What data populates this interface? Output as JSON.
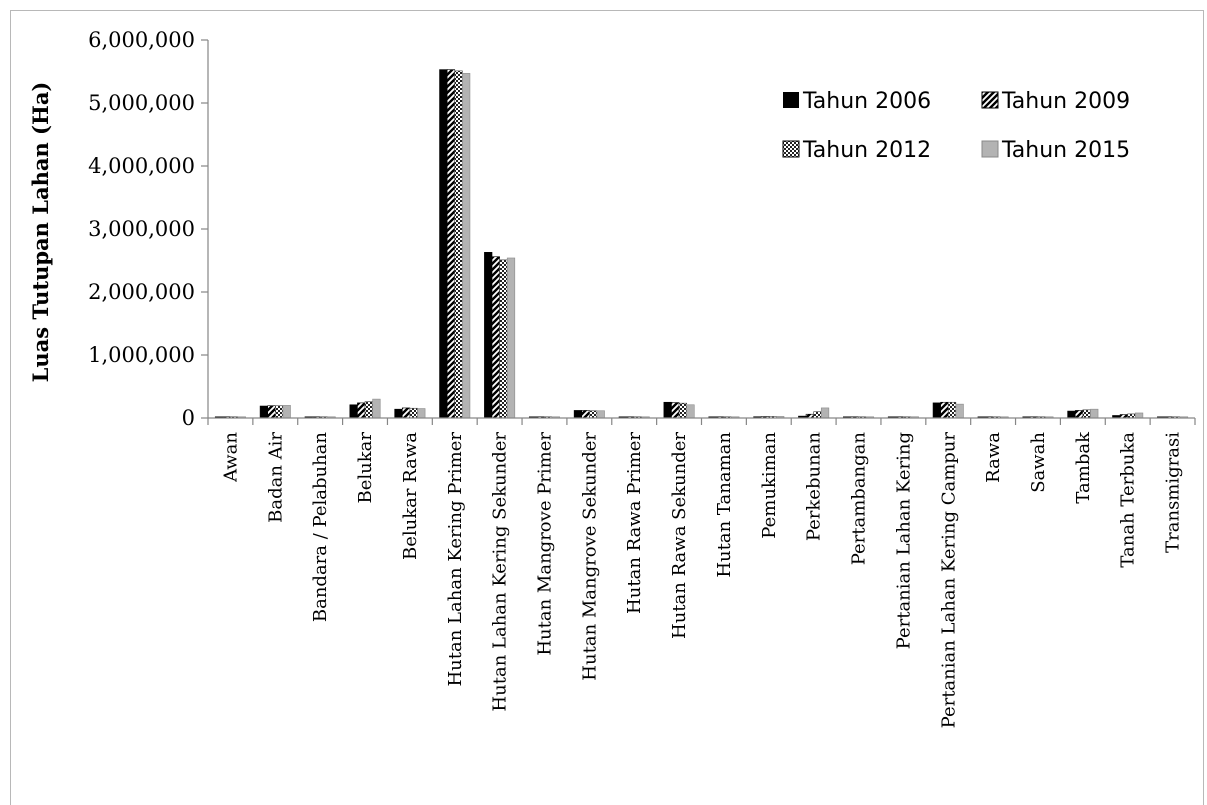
{
  "chart_data": {
    "type": "bar",
    "title": "",
    "xlabel": "",
    "ylabel": "Luas Tutupan Lahan (Ha)",
    "ylim": [
      0,
      6000000
    ],
    "yticks": [
      "0",
      "1,000,000",
      "2,000,000",
      "3,000,000",
      "4,000,000",
      "5,000,000",
      "6,000,000"
    ],
    "grid": false,
    "legend_position": "top-right",
    "categories": [
      "Awan",
      "Badan Air",
      "Bandara / Pelabuhan",
      "Belukar",
      "Belukar Rawa",
      "Hutan Lahan Kering Primer",
      "Hutan Lahan Kering Sekunder",
      "Hutan Mangrove Primer",
      "Hutan Mangrove Sekunder",
      "Hutan Rawa Primer",
      "Hutan Rawa Sekunder",
      "Hutan Tanaman",
      "Pemukiman",
      "Perkebunan",
      "Pertambangan",
      "Pertanian Lahan Kering",
      "Pertanian Lahan Kering Campur",
      "Rawa",
      "Sawah",
      "Tambak",
      "Tanah Terbuka",
      "Transmigrasi"
    ],
    "series": [
      {
        "name": "Tahun 2006",
        "values": [
          2000,
          190000,
          5000,
          210000,
          140000,
          5530000,
          2630000,
          5000,
          120000,
          15000,
          250000,
          10000,
          20000,
          30000,
          5000,
          15000,
          240000,
          5000,
          5000,
          110000,
          40000,
          5000
        ]
      },
      {
        "name": "Tahun 2009",
        "values": [
          2000,
          195000,
          5000,
          240000,
          160000,
          5530000,
          2560000,
          5000,
          120000,
          15000,
          245000,
          10000,
          22000,
          60000,
          6000,
          16000,
          250000,
          5000,
          5000,
          120000,
          55000,
          5000
        ]
      },
      {
        "name": "Tahun 2012",
        "values": [
          2000,
          195000,
          6000,
          260000,
          155000,
          5510000,
          2510000,
          5000,
          115000,
          15000,
          235000,
          12000,
          24000,
          100000,
          7000,
          18000,
          250000,
          5000,
          5000,
          130000,
          65000,
          5000
        ]
      },
      {
        "name": "Tahun 2015",
        "values": [
          2000,
          200000,
          7000,
          300000,
          150000,
          5470000,
          2540000,
          5000,
          115000,
          15000,
          210000,
          15000,
          25000,
          160000,
          8000,
          20000,
          220000,
          5000,
          5000,
          140000,
          80000,
          5000
        ]
      }
    ],
    "colors": {
      "Tahun 2006": "#000000",
      "Tahun 2009": "#1a1a1a",
      "Tahun 2012": "#6e6e6e",
      "Tahun 2015": "#b3b3b3"
    }
  }
}
